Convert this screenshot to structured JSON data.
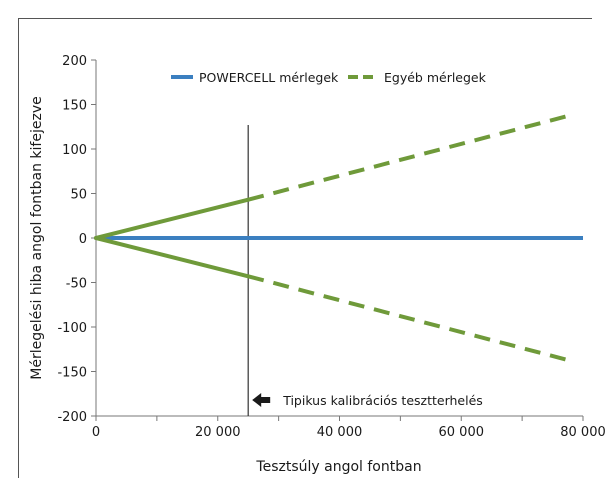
{
  "chart_data": {
    "type": "line",
    "title": "",
    "xlabel": "Tesztsúly angol fontban",
    "ylabel": "Mérlegelési hiba angol fontban kifejezve",
    "xlim": [
      0,
      80000
    ],
    "ylim": [
      -200,
      200
    ],
    "x_ticks": [
      0,
      20000,
      40000,
      60000,
      80000
    ],
    "x_tick_labels": [
      "0",
      "20 000",
      "40 000",
      "60 000",
      "80 000"
    ],
    "y_ticks": [
      200,
      150,
      100,
      50,
      0,
      -50,
      -100,
      -150,
      -200
    ],
    "y_tick_labels": [
      "200",
      "150",
      "100",
      "50",
      "0",
      "-50",
      "-100",
      "-150",
      "-200"
    ],
    "grid": false,
    "legend_position": "top",
    "series": [
      {
        "name": "POWERCELL mérlegek",
        "color": "#3b7fc0",
        "style": "solid",
        "x": [
          0,
          80000
        ],
        "y": [
          0,
          0
        ]
      },
      {
        "name": "Egyéb mérlegek",
        "color": "#6f9a3a",
        "style": "solid then dashed",
        "x": [
          0,
          25000,
          78000
        ],
        "y": [
          0,
          43,
          138
        ]
      },
      {
        "name": "",
        "color": "#6f9a3a",
        "style": "solid then dashed",
        "x": [
          0,
          25000,
          78000
        ],
        "y": [
          0,
          -43,
          -138
        ]
      }
    ],
    "reference_line": {
      "x": 25000,
      "annotation": "Tipikus kalibrációs tesztterhelés",
      "arrow_icon": "arrow-left-icon"
    }
  }
}
